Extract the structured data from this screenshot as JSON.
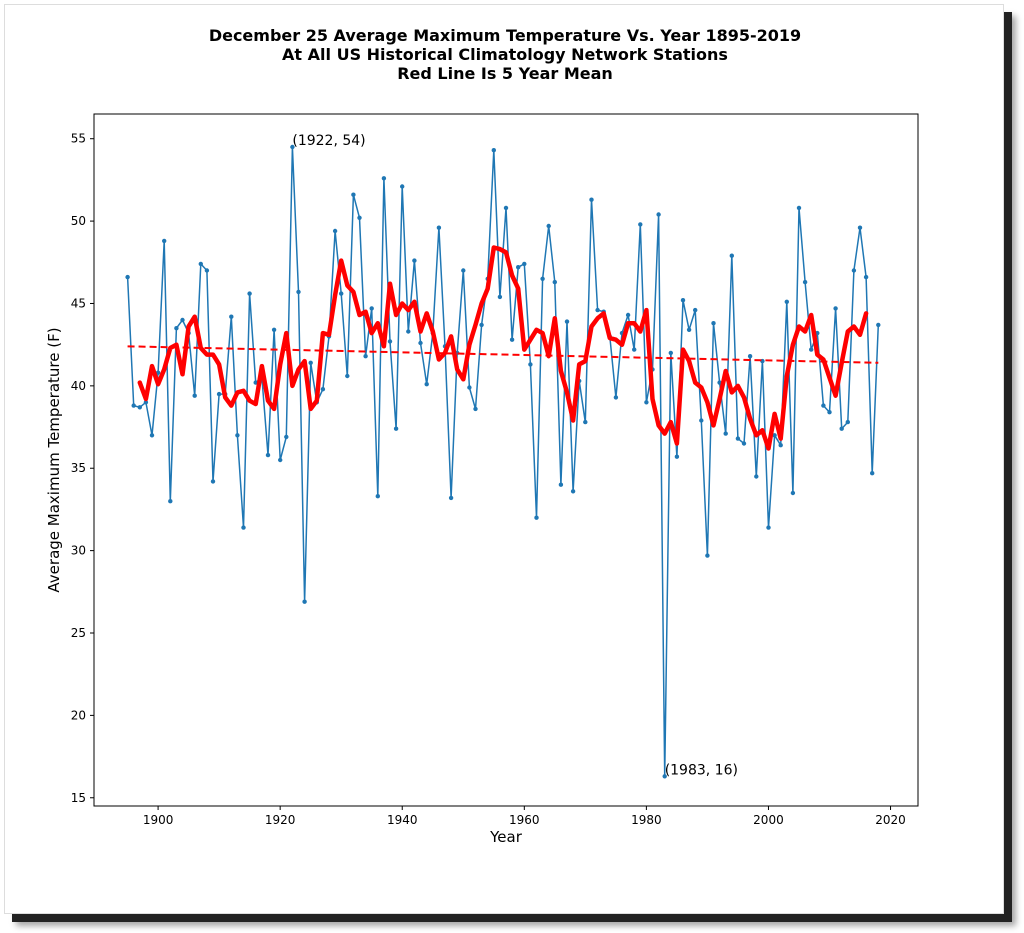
{
  "chart_data": {
    "type": "line",
    "title_lines": [
      "December 25 Average Maximum Temperature Vs. Year 1895-2019",
      "At All US Historical Climatology Network Stations",
      "Red Line Is 5 Year Mean"
    ],
    "xlabel": "Year",
    "ylabel": "Average Maximum Temperature (F)",
    "xlim": [
      1889.5,
      2024.5
    ],
    "ylim": [
      14.5,
      56.5
    ],
    "xticks": [
      1900,
      1920,
      1940,
      1960,
      1980,
      2000,
      2020
    ],
    "yticks": [
      15,
      20,
      25,
      30,
      35,
      40,
      45,
      50,
      55
    ],
    "grid": false,
    "colors": {
      "data": "#1f77b4",
      "mean": "#ff0000",
      "trend": "#ff0000"
    },
    "series": [
      {
        "x": [
          1895,
          1896,
          1897,
          1898,
          1899,
          1900,
          1901,
          1902,
          1903,
          1904,
          1905,
          1906,
          1907,
          1908,
          1909,
          1910,
          1911,
          1912,
          1913,
          1914,
          1915,
          1916,
          1917,
          1918,
          1919,
          1920,
          1921,
          1922,
          1923,
          1924,
          1925,
          1926,
          1927,
          1928,
          1929,
          1930,
          1931,
          1932,
          1933,
          1934,
          1935,
          1936,
          1937,
          1938,
          1939,
          1940,
          1941,
          1942,
          1943,
          1944,
          1945,
          1946,
          1947,
          1948,
          1949,
          1950,
          1951,
          1952,
          1953,
          1954,
          1955,
          1956,
          1957,
          1958,
          1959,
          1960,
          1961,
          1962,
          1963,
          1964,
          1965,
          1966,
          1967,
          1968,
          1969,
          1970,
          1971,
          1972,
          1973,
          1974,
          1975,
          1976,
          1977,
          1978,
          1979,
          1980,
          1981,
          1982,
          1983,
          1984,
          1985,
          1986,
          1987,
          1988,
          1989,
          1990,
          1991,
          1992,
          1993,
          1994,
          1995,
          1996,
          1997,
          1998,
          1999,
          2000,
          2001,
          2002,
          2003,
          2004,
          2005,
          2006,
          2007,
          2008,
          2009,
          2010,
          2011,
          2012,
          2013,
          2014,
          2015,
          2016,
          2017,
          2018
        ],
        "values": [
          46.6,
          38.8,
          38.7,
          39.0,
          37.0,
          40.8,
          48.8,
          33.0,
          43.5,
          44.0,
          43.2,
          39.4,
          47.4,
          47.0,
          34.2,
          39.5,
          39.5,
          44.2,
          37.0,
          31.4,
          45.6,
          40.2,
          40.5,
          35.8,
          43.4,
          35.5,
          36.9,
          54.5,
          45.7,
          26.9,
          41.4,
          39.0,
          39.8,
          43.0,
          49.4,
          45.6,
          40.6,
          51.6,
          50.2,
          41.8,
          44.7,
          33.3,
          52.6,
          42.7,
          37.4,
          52.1,
          43.3,
          47.6,
          42.6,
          40.1,
          43.2,
          49.6,
          42.4,
          33.2,
          42.0,
          47.0,
          39.9,
          38.6,
          43.7,
          46.5,
          54.3,
          45.4,
          50.8,
          42.8,
          47.2,
          47.4,
          41.3,
          32.0,
          46.5,
          49.7,
          46.3,
          34.0,
          43.9,
          33.6,
          40.3,
          37.8,
          51.3,
          44.6,
          44.5,
          43.0,
          39.3,
          43.2,
          44.3,
          42.2,
          49.8,
          39.0,
          41.0,
          50.4,
          16.3,
          42.0,
          35.7,
          45.2,
          43.4,
          44.6,
          37.9,
          29.7,
          43.8,
          40.2,
          37.1,
          47.9,
          36.8,
          36.5,
          41.8,
          34.5,
          41.5,
          31.4,
          37.0,
          36.4,
          45.1,
          33.5,
          50.8,
          46.3,
          42.2,
          43.2,
          38.8,
          38.4,
          44.7,
          37.4,
          37.8,
          47.0,
          49.6,
          46.6,
          34.7,
          43.7
        ]
      },
      {
        "name": "5 Year Mean",
        "x": [
          1897,
          1898,
          1899,
          1900,
          1901,
          1902,
          1903,
          1904,
          1905,
          1906,
          1907,
          1908,
          1909,
          1910,
          1911,
          1912,
          1913,
          1914,
          1915,
          1916,
          1917,
          1918,
          1919,
          1920,
          1921,
          1922,
          1923,
          1924,
          1925,
          1926,
          1927,
          1928,
          1929,
          1930,
          1931,
          1932,
          1933,
          1934,
          1935,
          1936,
          1937,
          1938,
          1939,
          1940,
          1941,
          1942,
          1943,
          1944,
          1945,
          1946,
          1947,
          1948,
          1949,
          1950,
          1951,
          1952,
          1953,
          1954,
          1955,
          1956,
          1957,
          1958,
          1959,
          1960,
          1961,
          1962,
          1963,
          1964,
          1965,
          1966,
          1967,
          1968,
          1969,
          1970,
          1971,
          1972,
          1973,
          1974,
          1975,
          1976,
          1977,
          1978,
          1979,
          1980,
          1981,
          1982,
          1983,
          1984,
          1985,
          1986,
          1987,
          1988,
          1989,
          1990,
          1991,
          1992,
          1993,
          1994,
          1995,
          1996,
          1997,
          1998,
          1999,
          2000,
          2001,
          2002,
          2003,
          2004,
          2005,
          2006,
          2007,
          2008,
          2009,
          2010,
          2011,
          2012,
          2013,
          2014,
          2015,
          2016
        ],
        "values": [
          40.2,
          39.2,
          41.2,
          40.1,
          41.0,
          42.3,
          42.5,
          40.7,
          43.6,
          44.2,
          42.3,
          41.9,
          41.9,
          41.3,
          39.3,
          38.8,
          39.6,
          39.7,
          39.1,
          38.9,
          41.2,
          39.1,
          38.6,
          41.3,
          43.2,
          40.0,
          41.0,
          41.5,
          38.6,
          39.1,
          43.2,
          43.1,
          45.5,
          47.6,
          46.1,
          45.7,
          44.3,
          44.5,
          43.2,
          43.8,
          42.4,
          46.2,
          44.3,
          45.0,
          44.6,
          45.1,
          43.3,
          44.4,
          43.3,
          41.6,
          42.0,
          43.0,
          41.0,
          40.4,
          42.5,
          43.7,
          45.0,
          45.9,
          48.4,
          48.3,
          48.1,
          46.7,
          45.9,
          42.2,
          42.8,
          43.4,
          43.2,
          41.8,
          44.1,
          40.9,
          39.6,
          37.9,
          41.3,
          41.5,
          43.6,
          44.1,
          44.4,
          42.9,
          42.8,
          42.5,
          43.8,
          43.8,
          43.3,
          44.6,
          39.2,
          37.6,
          37.1,
          37.8,
          36.5,
          42.2,
          41.5,
          40.2,
          39.9,
          39.0,
          37.6,
          39.2,
          40.9,
          39.6,
          40.0,
          39.3,
          38.0,
          37.0,
          37.3,
          36.2,
          38.3,
          36.8,
          40.6,
          42.5,
          43.6,
          43.3,
          44.3,
          41.9,
          41.6,
          40.5,
          39.4,
          41.4,
          43.3,
          43.6,
          43.1,
          44.4
        ]
      },
      {
        "name": "trend",
        "x": [
          1895,
          2018
        ],
        "values": [
          42.4,
          41.4
        ]
      }
    ],
    "annotations": [
      {
        "x": 1922,
        "y": 54.5,
        "text": "(1922, 54)"
      },
      {
        "x": 1983,
        "y": 16.3,
        "text": "(1983, 16)"
      }
    ]
  }
}
